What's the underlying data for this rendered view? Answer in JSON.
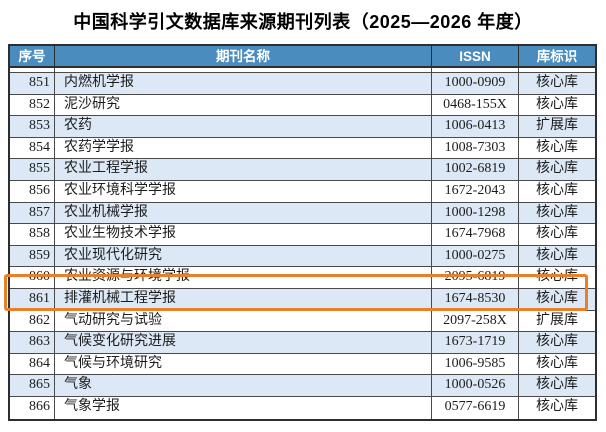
{
  "title": "中国科学引文数据库来源期刊列表（2025—2026 年度）",
  "table": {
    "columns": [
      "序号",
      "期刊名称",
      "ISSN",
      "库标识"
    ],
    "rows": [
      {
        "no": "851",
        "name": "内燃机学报",
        "issn": "1000-0909",
        "tag": "核心库"
      },
      {
        "no": "852",
        "name": "泥沙研究",
        "issn": "0468-155X",
        "tag": "核心库"
      },
      {
        "no": "853",
        "name": "农药",
        "issn": "1006-0413",
        "tag": "扩展库"
      },
      {
        "no": "854",
        "name": "农药学学报",
        "issn": "1008-7303",
        "tag": "核心库"
      },
      {
        "no": "855",
        "name": "农业工程学报",
        "issn": "1002-6819",
        "tag": "核心库"
      },
      {
        "no": "856",
        "name": "农业环境科学学报",
        "issn": "1672-2043",
        "tag": "核心库"
      },
      {
        "no": "857",
        "name": "农业机械学报",
        "issn": "1000-1298",
        "tag": "核心库"
      },
      {
        "no": "858",
        "name": "农业生物技术学报",
        "issn": "1674-7968",
        "tag": "核心库"
      },
      {
        "no": "859",
        "name": "农业现代化研究",
        "issn": "1000-0275",
        "tag": "核心库"
      },
      {
        "no": "860",
        "name": "农业资源与环境学报",
        "issn": "2095-6819",
        "tag": "核心库"
      },
      {
        "no": "861",
        "name": "排灌机械工程学报",
        "issn": "1674-8530",
        "tag": "核心库"
      },
      {
        "no": "862",
        "name": "气动研究与试验",
        "issn": "2097-258X",
        "tag": "扩展库"
      },
      {
        "no": "863",
        "name": "气候变化研究进展",
        "issn": "1673-1719",
        "tag": "核心库"
      },
      {
        "no": "864",
        "name": "气候与环境研究",
        "issn": "1006-9585",
        "tag": "核心库"
      },
      {
        "no": "865",
        "name": "气象",
        "issn": "1000-0526",
        "tag": "核心库"
      },
      {
        "no": "866",
        "name": "气象学报",
        "issn": "0577-6619",
        "tag": "核心库"
      }
    ]
  },
  "highlight": {
    "row_no": "861"
  },
  "colors": {
    "header_bg": "#4a8cbe",
    "row_alt_bg": "#dce8f5",
    "highlight_border": "#e8802a",
    "border": "#2e2e2e"
  }
}
